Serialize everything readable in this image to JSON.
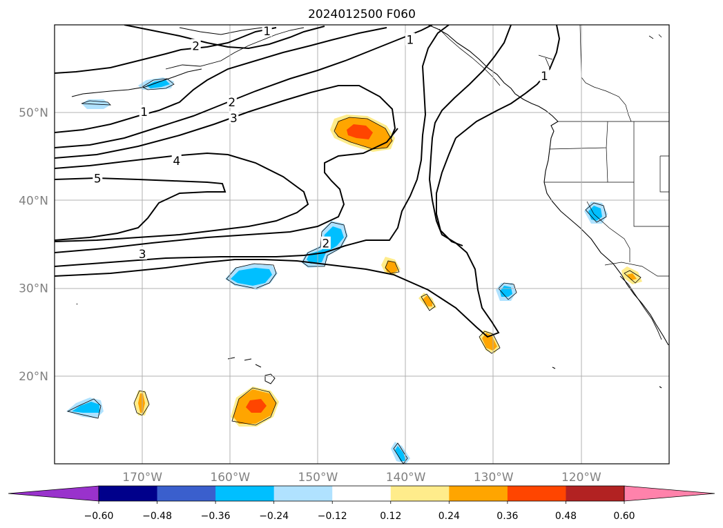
{
  "title": "2024012500 F060",
  "map": {
    "projection": "PlateCarree",
    "lon_range": [
      -180,
      -110
    ],
    "lat_range": [
      10,
      60
    ],
    "gridlines": true,
    "lon_ticks": [
      {
        "lon": -170,
        "label": "170°W"
      },
      {
        "lon": -160,
        "label": "160°W"
      },
      {
        "lon": -150,
        "label": "150°W"
      },
      {
        "lon": -140,
        "label": "140°W"
      },
      {
        "lon": -130,
        "label": "130°W"
      },
      {
        "lon": -120,
        "label": "120°W"
      }
    ],
    "lat_ticks": [
      {
        "lat": 20,
        "label": "20°N"
      },
      {
        "lat": 30,
        "label": "30°N"
      },
      {
        "lat": 40,
        "label": "40°N"
      },
      {
        "lat": 50,
        "label": "50°N"
      }
    ],
    "contour_labels": [
      {
        "text": "1",
        "lon": -169.8,
        "lat": 50.1
      },
      {
        "text": "1",
        "lon": -139.5,
        "lat": 58.3
      },
      {
        "text": "1",
        "lon": -155.8,
        "lat": 59.3
      },
      {
        "text": "1",
        "lon": -124.2,
        "lat": 54.2
      },
      {
        "text": "2",
        "lon": -163.9,
        "lat": 57.6
      },
      {
        "text": "2",
        "lon": -159.8,
        "lat": 51.2
      },
      {
        "text": "2",
        "lon": -149.1,
        "lat": 35.1
      },
      {
        "text": "3",
        "lon": -159.6,
        "lat": 49.4
      },
      {
        "text": "3",
        "lon": -170.0,
        "lat": 33.9
      },
      {
        "text": "4",
        "lon": -166.1,
        "lat": 44.5
      },
      {
        "text": "5",
        "lon": -175.1,
        "lat": 42.5
      }
    ]
  },
  "colorbar": {
    "extend": "both",
    "levels": [
      -0.6,
      -0.48,
      -0.36,
      -0.24,
      -0.12,
      0.12,
      0.24,
      0.36,
      0.48,
      0.6
    ],
    "colors": [
      "#9932cc",
      "#00008b",
      "#3a5fcd",
      "#00bfff",
      "#b0e2ff",
      "#ffffff",
      "#ffec8b",
      "#ffa500",
      "#ff4500",
      "#b22222",
      "#ff82ab"
    ],
    "tick_labels": [
      "−0.60",
      "−0.48",
      "−0.36",
      "−0.24",
      "−0.12",
      "0.12",
      "0.24",
      "0.36",
      "0.48",
      "0.60"
    ]
  },
  "shaded_features": [
    {
      "name": "blob-pos-gulf-of-alaska",
      "sign": "positive",
      "peak": 0.4,
      "center_lon": -145.3,
      "center_lat": 47.5
    },
    {
      "name": "blob-pos-hawaii-north",
      "sign": "positive",
      "peak": 0.4,
      "center_lon": -157.2,
      "center_lat": 16.6
    },
    {
      "name": "blob-pos-170w",
      "sign": "positive",
      "peak": 0.3,
      "center_lon": -170.0,
      "center_lat": 17.2
    },
    {
      "name": "blob-pos-131w",
      "sign": "positive",
      "peak": 0.3,
      "center_lon": -130.0,
      "center_lat": 24.0
    },
    {
      "name": "blob-pos-142w",
      "sign": "positive",
      "peak": 0.3,
      "center_lon": -142.0,
      "center_lat": 32.5
    },
    {
      "name": "blob-pos-139w",
      "sign": "positive",
      "peak": 0.2,
      "center_lon": -137.5,
      "center_lat": 28.5
    },
    {
      "name": "blob-pos-baja",
      "sign": "positive",
      "peak": 0.2,
      "center_lon": -114.0,
      "center_lat": 31.3
    },
    {
      "name": "blob-neg-aleutian",
      "sign": "negative",
      "peak": -0.3,
      "center_lon": -168.0,
      "center_lat": 53.2
    },
    {
      "name": "blob-neg-175w",
      "sign": "negative",
      "peak": -0.2,
      "center_lon": -174.5,
      "center_lat": 51.0
    },
    {
      "name": "blob-neg-150w-35n",
      "sign": "negative",
      "peak": -0.3,
      "center_lon": -149.5,
      "center_lat": 34.5
    },
    {
      "name": "blob-neg-157w-31n",
      "sign": "negative",
      "peak": -0.3,
      "center_lon": -157.5,
      "center_lat": 31.5
    },
    {
      "name": "blob-neg-128w-30n",
      "sign": "negative",
      "peak": -0.3,
      "center_lon": -128.5,
      "center_lat": 29.5
    },
    {
      "name": "blob-neg-120w-38n",
      "sign": "negative",
      "peak": -0.3,
      "center_lon": -120.2,
      "center_lat": 38.5
    },
    {
      "name": "blob-neg-176w-16n",
      "sign": "negative",
      "peak": -0.3,
      "center_lon": -175.5,
      "center_lat": 16.2
    },
    {
      "name": "blob-neg-140w-11n",
      "sign": "negative",
      "peak": -0.3,
      "center_lon": -140.3,
      "center_lat": 11.0
    }
  ]
}
